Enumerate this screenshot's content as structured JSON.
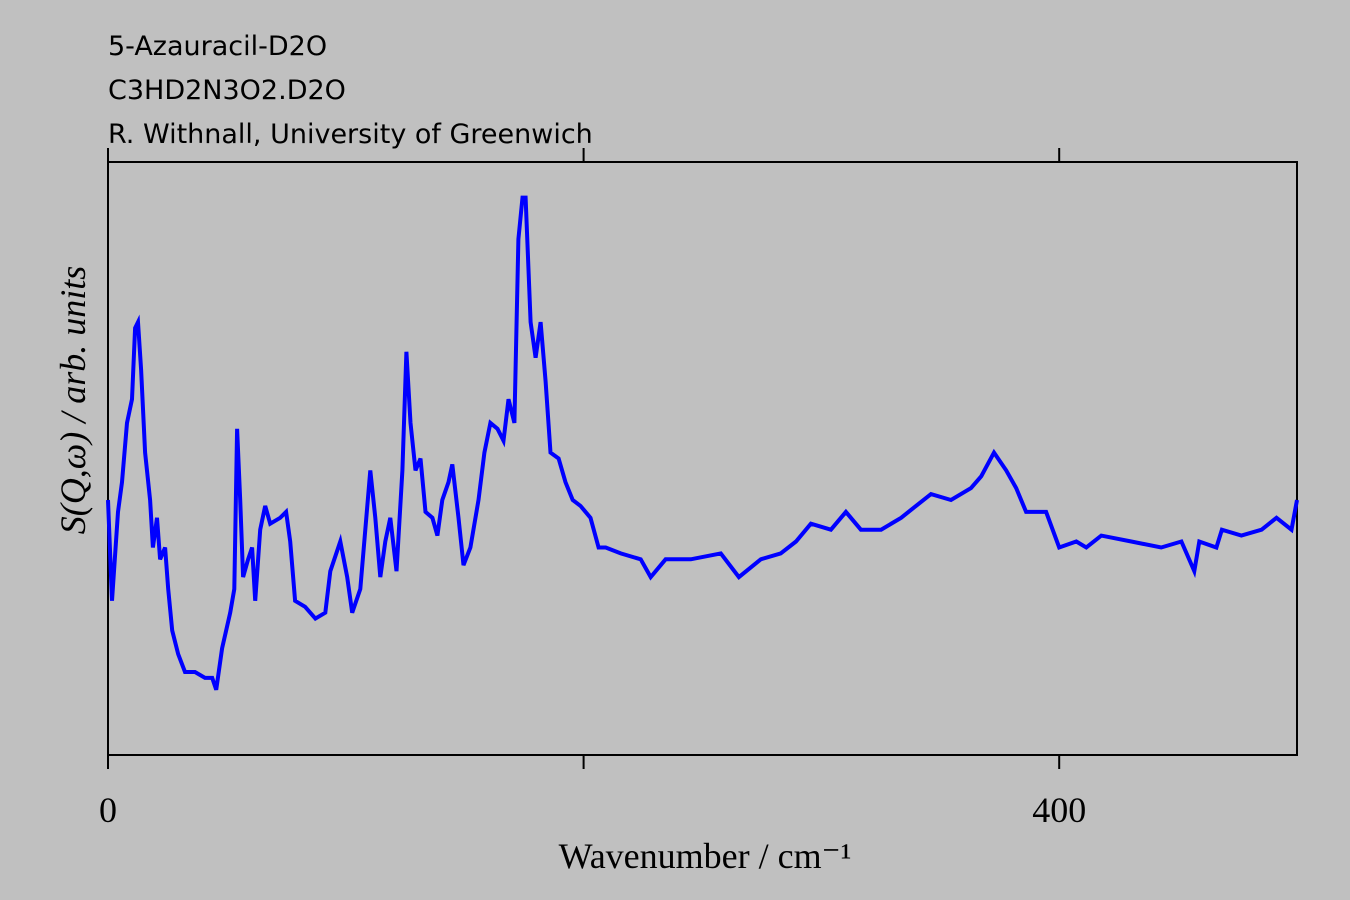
{
  "chart_data": {
    "type": "line",
    "title_lines": [
      "5-Azauracil-D2O",
      "C3HD2N3O2.D2O",
      "R. Withnall, University of Greenwich"
    ],
    "x_label": "Wavenumber / cm⁻¹",
    "y_label": "S(Q,ω) / arb. units",
    "xlim": [
      0,
      500
    ],
    "xticks": [
      0,
      400
    ],
    "xticks_unlabeled": [
      200
    ],
    "ylim": [
      0,
      100
    ],
    "series": [
      {
        "color": "#0000ff",
        "x": [
          0,
          1.7,
          4.2,
          5.9,
          8.0,
          10.1,
          11.4,
          12.6,
          13.9,
          15.6,
          17.7,
          18.9,
          20.6,
          21.9,
          24.0,
          25.3,
          27.0,
          29.5,
          32.4,
          36.6,
          40.8,
          43.8,
          45.5,
          48.0,
          51.4,
          53.1,
          54.3,
          55.6,
          56.8,
          58.9,
          60.6,
          61.9,
          64.0,
          66.1,
          68.2,
          72.4,
          74.9,
          76.6,
          78.7,
          82.9,
          87.2,
          91.4,
          93.5,
          97.7,
          100.6,
          102.7,
          106.1,
          108.6,
          110.3,
          112.4,
          114.5,
          116.6,
          118.7,
          121.3,
          123.8,
          125.5,
          127.2,
          129.3,
          131.4,
          133.5,
          136.4,
          138.5,
          140.6,
          143.2,
          144.8,
          147.4,
          149.5,
          152.4,
          155.8,
          158.3,
          160.8,
          163.8,
          166.3,
          168.4,
          170.9,
          172.6,
          174.3,
          175.6,
          177.7,
          179.8,
          181.9,
          184.0,
          186.1,
          189.5,
          192.4,
          195.4,
          198.7,
          202.9,
          206.3,
          209.3,
          215.6,
          224.0,
          228.2,
          234.5,
          245.1,
          257.7,
          265.3,
          274.5,
          282.9,
          289.3,
          295.6,
          304.0,
          310.3,
          316.6,
          325.1,
          333.5,
          339.8,
          346.1,
          354.5,
          362.9,
          367.2,
          372.6,
          377.7,
          381.9,
          386.1,
          394.5,
          400.0,
          407.2,
          411.4,
          417.7,
          430.3,
          442.9,
          451.4,
          456.8,
          458.9,
          466.1,
          468.4,
          476.6,
          485.1,
          491.4,
          497.7,
          500
        ],
        "values": [
          43,
          26,
          41,
          46,
          56,
          60,
          72,
          73,
          65,
          51,
          43,
          35,
          40,
          33,
          35,
          28,
          21,
          17,
          14,
          14,
          13,
          13,
          11,
          18,
          24,
          28,
          55,
          43,
          30,
          33,
          35,
          26,
          38,
          42,
          39,
          40,
          41,
          36,
          26,
          25,
          23,
          24,
          31,
          36,
          30,
          24,
          28,
          40,
          48,
          40,
          30,
          36,
          40,
          31,
          48,
          68,
          56,
          48,
          50,
          41,
          40,
          37,
          43,
          46,
          49,
          40,
          32,
          35,
          43,
          51,
          56,
          55,
          53,
          60,
          56,
          87,
          94,
          94,
          73,
          67,
          73,
          63,
          51,
          50,
          46,
          43,
          42,
          40,
          35,
          35,
          34,
          33,
          30,
          33,
          33,
          34,
          30,
          33,
          34,
          36,
          39,
          38,
          41,
          38,
          38,
          40,
          42,
          44,
          43,
          45,
          47,
          51,
          48,
          45,
          41,
          41,
          35,
          36,
          35,
          37,
          36,
          35,
          36,
          31,
          36,
          35,
          38,
          37,
          38,
          40,
          38,
          43
        ]
      }
    ]
  }
}
